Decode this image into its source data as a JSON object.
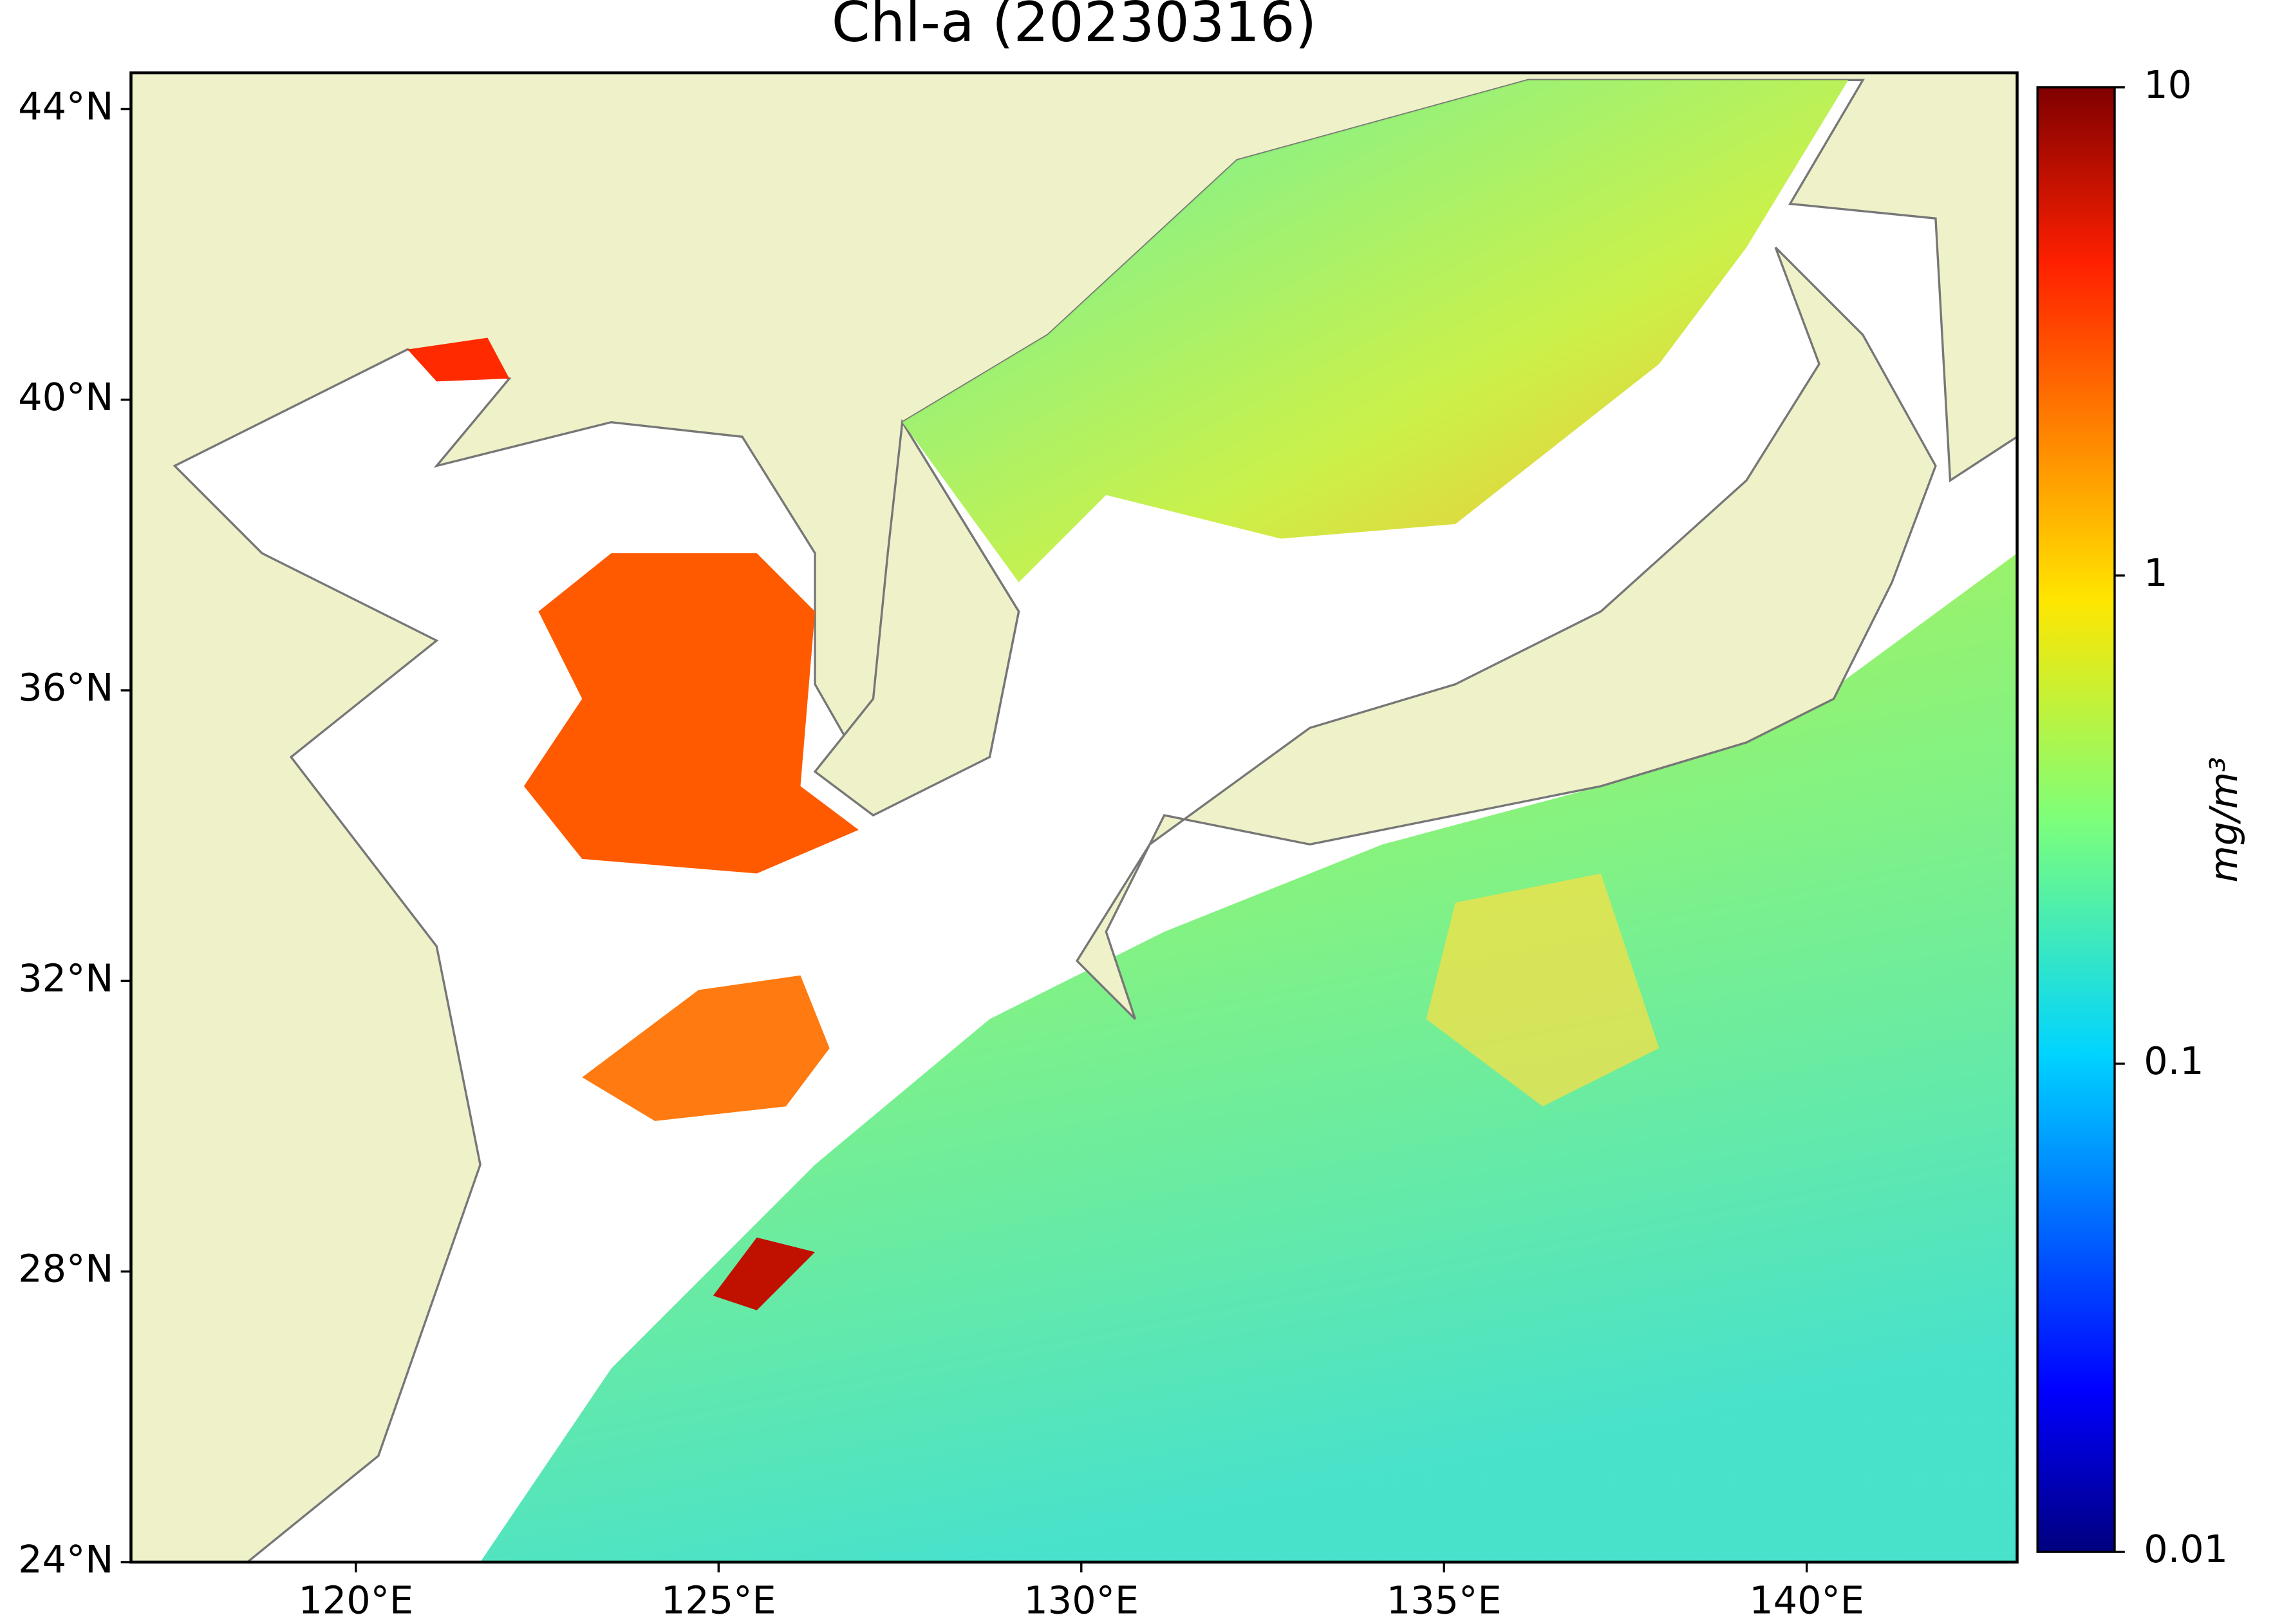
{
  "chart_data": {
    "type": "map",
    "title": "Chl-a (20230316)",
    "xlim": [
      116.9,
      142.9
    ],
    "ylim": [
      24,
      44.5
    ],
    "xticks": [
      {
        "value": 120,
        "label": "120°E"
      },
      {
        "value": 125,
        "label": "125°E"
      },
      {
        "value": 130,
        "label": "130°E"
      },
      {
        "value": 135,
        "label": "135°E"
      },
      {
        "value": 140,
        "label": "140°E"
      }
    ],
    "yticks": [
      {
        "value": 24,
        "label": "24°N"
      },
      {
        "value": 28,
        "label": "28°N"
      },
      {
        "value": 32,
        "label": "32°N"
      },
      {
        "value": 36,
        "label": "36°N"
      },
      {
        "value": 40,
        "label": "40°N"
      },
      {
        "value": 44,
        "label": "44°N"
      }
    ],
    "colorbar": {
      "label": "mg/m³",
      "clim": [
        0.01,
        10
      ],
      "scale": "log",
      "ticks": [
        0.01,
        0.1,
        1,
        10
      ]
    }
  }
}
